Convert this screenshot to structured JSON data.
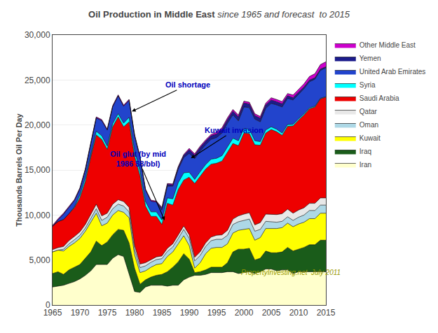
{
  "chart_data": {
    "type": "area",
    "stacked": true,
    "title": "Oil Production in Middle East",
    "subtitle": "since 1965 and forecast  to 2015",
    "ylabel": "Thousands Barrels Oil Per Day",
    "x": [
      1965,
      1966,
      1967,
      1968,
      1969,
      1970,
      1971,
      1972,
      1973,
      1974,
      1975,
      1976,
      1977,
      1978,
      1979,
      1980,
      1981,
      1982,
      1983,
      1984,
      1985,
      1986,
      1987,
      1988,
      1989,
      1990,
      1991,
      1992,
      1993,
      1994,
      1995,
      1996,
      1997,
      1998,
      1999,
      2000,
      2001,
      2002,
      2003,
      2004,
      2005,
      2006,
      2007,
      2008,
      2009,
      2010,
      2011,
      2012,
      2013,
      2014,
      2015
    ],
    "xlim": [
      1965,
      2015
    ],
    "xticks": [
      1965,
      1970,
      1975,
      1980,
      1985,
      1990,
      1995,
      2000,
      2005,
      2010,
      2015
    ],
    "ylim": [
      0,
      30000
    ],
    "yticks": [
      0,
      {
        "value": 5000,
        "label": "5,000"
      },
      {
        "value": 10000,
        "label": "10,000"
      },
      {
        "value": 15000,
        "label": "15,000"
      },
      {
        "value": 20000,
        "label": "20,000"
      },
      {
        "value": 25000,
        "label": "25,000"
      },
      {
        "value": 30000,
        "label": "30,000"
      }
    ],
    "grid": "y",
    "legend": "right",
    "series": [
      {
        "name": "Iran",
        "color": "#FFFFCC",
        "values": [
          2000,
          2100,
          2200,
          2400,
          2600,
          2900,
          3300,
          3800,
          4500,
          4500,
          4500,
          5200,
          5600,
          5400,
          3400,
          1500,
          1400,
          2000,
          2200,
          2200,
          2200,
          2100,
          2200,
          2200,
          2800,
          3100,
          3300,
          3300,
          3400,
          3600,
          3600,
          3600,
          3700,
          3700,
          3500,
          3600,
          3700,
          3500,
          3700,
          4000,
          4000,
          3800,
          3900,
          3900,
          3500,
          3700,
          3700,
          3700,
          3700,
          3700,
          3700
        ]
      },
      {
        "name": "Iraq",
        "color": "#1A5C1A",
        "values": [
          1500,
          1600,
          1200,
          1500,
          1600,
          1600,
          1900,
          2100,
          2600,
          2100,
          2500,
          2600,
          2800,
          2900,
          3500,
          2600,
          900,
          800,
          900,
          1100,
          1200,
          1600,
          2000,
          2600,
          2900,
          2000,
          300,
          400,
          500,
          600,
          600,
          600,
          1000,
          2200,
          2700,
          2600,
          2600,
          1500,
          1500,
          2000,
          1800,
          2000,
          2000,
          2500,
          2500,
          2500,
          2700,
          3000,
          3000,
          3500,
          3500
        ]
      },
      {
        "name": "Kuwait",
        "color": "#FFFF00",
        "values": [
          2400,
          2400,
          2600,
          2600,
          2700,
          2900,
          3000,
          3300,
          3100,
          2200,
          2100,
          2200,
          2100,
          2000,
          2800,
          1500,
          1300,
          1000,
          1100,
          1200,
          1200,
          1700,
          1700,
          2000,
          2000,
          1500,
          500,
          1000,
          1800,
          2100,
          2200,
          2200,
          2100,
          2100,
          2100,
          2200,
          2200,
          2200,
          2300,
          2500,
          2700,
          2700,
          2700,
          2700,
          2700,
          2800,
          2800,
          2900,
          2900,
          3000,
          3000
        ]
      },
      {
        "name": "Oman",
        "color": "#ADD8E6",
        "values": [
          0,
          0,
          200,
          300,
          350,
          350,
          350,
          400,
          500,
          600,
          650,
          700,
          700,
          700,
          650,
          600,
          550,
          550,
          550,
          550,
          550,
          550,
          550,
          600,
          700,
          800,
          800,
          800,
          800,
          850,
          900,
          900,
          950,
          950,
          950,
          1000,
          1050,
          1000,
          900,
          800,
          750,
          700,
          700,
          700,
          700,
          750,
          800,
          900,
          900,
          900,
          900
        ]
      },
      {
        "name": "Qatar",
        "color": "#E8E8E8",
        "values": [
          250,
          280,
          300,
          350,
          370,
          370,
          400,
          450,
          500,
          500,
          450,
          500,
          500,
          500,
          500,
          450,
          400,
          350,
          300,
          300,
          300,
          350,
          350,
          350,
          380,
          400,
          400,
          400,
          400,
          400,
          450,
          500,
          550,
          600,
          650,
          700,
          700,
          700,
          750,
          800,
          850,
          850,
          850,
          850,
          800,
          800,
          800,
          800,
          800,
          800,
          800
        ]
      },
      {
        "name": "Saudi Arabia",
        "color": "#EE0000",
        "values": [
          2600,
          2900,
          3000,
          3000,
          3200,
          3800,
          4800,
          6400,
          7700,
          8500,
          7100,
          8600,
          9200,
          8300,
          9500,
          9900,
          9800,
          6300,
          4800,
          4500,
          3500,
          5000,
          4300,
          5100,
          5100,
          6400,
          8200,
          8400,
          8200,
          8100,
          8000,
          8200,
          8700,
          8400,
          7800,
          9000,
          8800,
          8900,
          8600,
          9000,
          9400,
          9200,
          8700,
          9200,
          9700,
          10000,
          10300,
          10500,
          10700,
          11000,
          11200
        ]
      },
      {
        "name": "Syria",
        "color": "#00FFFF",
        "values": [
          0,
          0,
          0,
          0,
          100,
          300,
          400,
          400,
          400,
          400,
          350,
          350,
          350,
          400,
          500,
          600,
          550,
          500,
          500,
          500,
          500,
          600,
          700,
          750,
          800,
          550,
          450,
          500,
          500,
          550,
          550,
          600,
          600,
          580,
          550,
          500,
          480,
          450,
          400,
          350,
          300,
          280,
          250,
          200,
          180,
          150,
          130,
          110,
          90,
          70,
          50
        ]
      },
      {
        "name": "United Arab Emirates",
        "color": "#2244CC",
        "values": [
          0,
          200,
          600,
          700,
          700,
          700,
          900,
          1100,
          1500,
          1700,
          1800,
          1900,
          2000,
          1900,
          1900,
          1700,
          1500,
          1300,
          1200,
          1100,
          1100,
          1300,
          1400,
          1500,
          1700,
          2100,
          2300,
          2300,
          2200,
          2200,
          2300,
          2500,
          2600,
          2600,
          2200,
          2400,
          2400,
          2400,
          2200,
          2400,
          2600,
          2700,
          2900,
          2900,
          2700,
          2700,
          2800,
          2900,
          3000,
          3100,
          3200
        ]
      },
      {
        "name": "Yemen",
        "color": "#1C1C8C",
        "values": [
          0,
          0,
          0,
          0,
          0,
          0,
          0,
          0,
          0,
          0,
          0,
          0,
          0,
          0,
          0,
          0,
          0,
          0,
          0,
          0,
          200,
          200,
          150,
          200,
          250,
          400,
          400,
          400,
          400,
          400,
          400,
          400,
          400,
          400,
          450,
          450,
          400,
          400,
          400,
          380,
          380,
          350,
          350,
          300,
          250,
          250,
          200,
          180,
          160,
          140,
          120
        ]
      },
      {
        "name": "Other Middle East",
        "color": "#CC00CC",
        "values": [
          100,
          100,
          100,
          100,
          100,
          100,
          100,
          100,
          100,
          100,
          100,
          100,
          100,
          100,
          100,
          100,
          100,
          100,
          100,
          100,
          100,
          100,
          100,
          100,
          100,
          150,
          150,
          150,
          150,
          150,
          200,
          200,
          200,
          200,
          200,
          200,
          200,
          200,
          200,
          200,
          250,
          250,
          250,
          250,
          300,
          300,
          350,
          400,
          450,
          500,
          550
        ]
      }
    ],
    "annotations": [
      {
        "text": "Oil shortage",
        "x": 1979.5,
        "y": 21500
      },
      {
        "text": "Oil glut (by mid\n1986 $8/bbl)",
        "x": 1985.5,
        "y": 9400
      },
      {
        "text": "Kuwait invasion",
        "x": 1990.3,
        "y": 16300
      },
      {
        "text": "PropertyInvesting.net  July 2011"
      }
    ]
  }
}
